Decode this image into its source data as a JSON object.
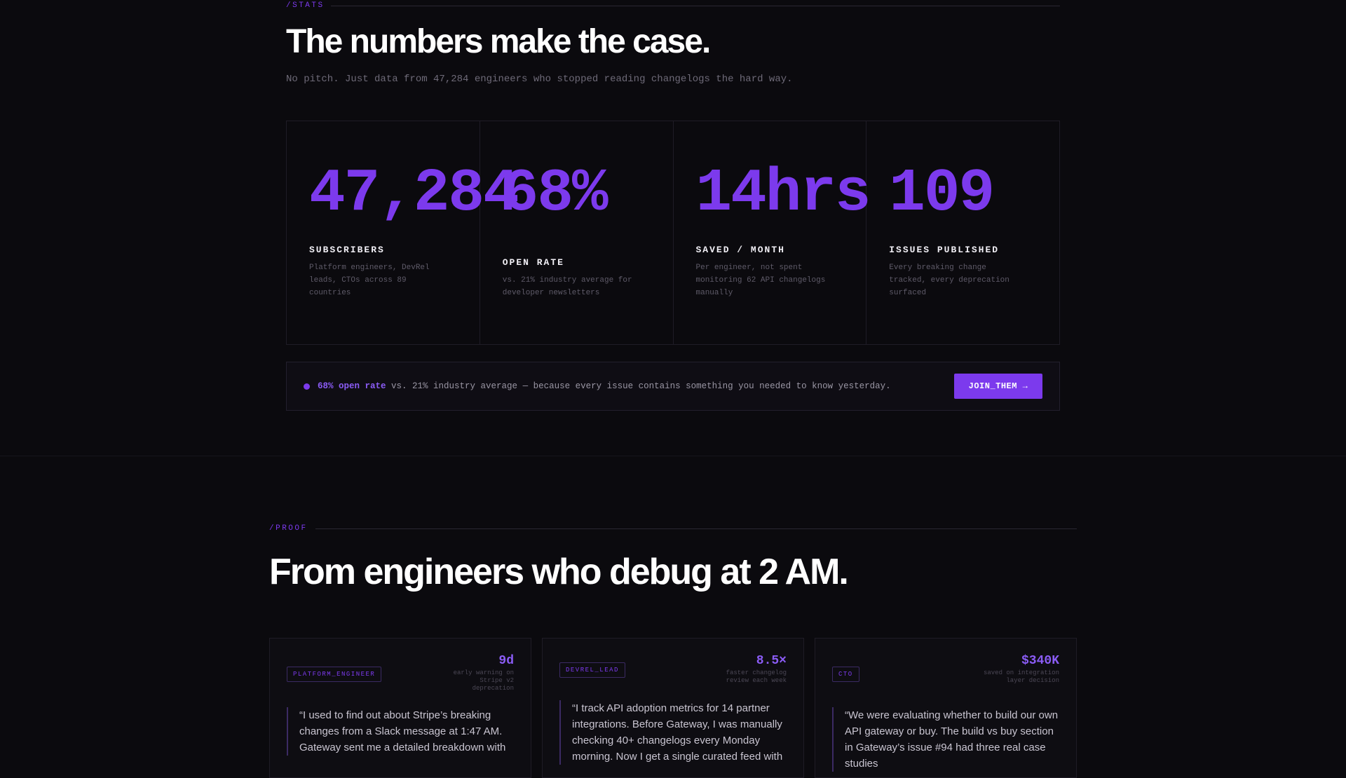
{
  "stats": {
    "eyebrow": "/STATS",
    "title": "The numbers make the case.",
    "subtitle": "No pitch. Just data from 47,284 engineers who stopped reading changelogs the hard way.",
    "items": [
      {
        "value": "47,284",
        "label": "SUBSCRIBERS",
        "desc": "Platform engineers, DevRel leads, CTOs across 89 countries"
      },
      {
        "value": "68%",
        "label": "OPEN RATE",
        "desc": "vs. 21% industry average for developer newsletters"
      },
      {
        "value": "14hrs",
        "label": "SAVED / MONTH",
        "desc": "Per engineer, not spent monitoring 62 API changelogs manually"
      },
      {
        "value": "109",
        "label": "ISSUES PUBLISHED",
        "desc": "Every breaking change tracked, every deprecation surfaced"
      }
    ],
    "banner": {
      "highlight": "68% open rate",
      "text": " vs. 21% industry average — because every issue contains something you needed to know yesterday.",
      "button": "JOIN_THEM →"
    }
  },
  "proof": {
    "eyebrow": "/PROOF",
    "title": "From engineers who debug at 2 AM.",
    "cards": [
      {
        "role": "PLATFORM_ENGINEER",
        "metric": "9d",
        "metric_caption": "early warning on Stripe v2 deprecation",
        "quote": "“I used to find out about Stripe’s breaking changes from a Slack message at 1:47 AM. Gateway sent me a detailed breakdown with"
      },
      {
        "role": "DEVREL_LEAD",
        "metric": "8.5×",
        "metric_caption": "faster changelog review each week",
        "quote": "“I track API adoption metrics for 14 partner integrations. Before Gateway, I was manually checking 40+ changelogs every Monday morning. Now I get a single curated feed with"
      },
      {
        "role": "CTO",
        "metric": "$340K",
        "metric_caption": "saved on integration layer decision",
        "quote": "“We were evaluating whether to build our own API gateway or buy. The build vs buy section in Gateway’s issue #94 had three real case studies"
      }
    ]
  },
  "colors": {
    "background": "#0b0a0e",
    "accent": "#7c3aed",
    "accent_light": "#8b5cf6",
    "text": "#ffffff",
    "muted": "#6e6a78"
  }
}
